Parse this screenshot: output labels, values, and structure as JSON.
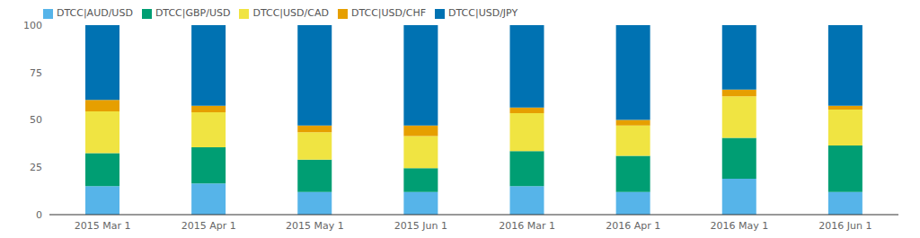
{
  "chart_data": {
    "type": "bar",
    "stacked": true,
    "grid": false,
    "legend": "top-left",
    "categories": [
      "2015 Mar 1",
      "2015 Apr 1",
      "2015 May 1",
      "2015 Jun 1",
      "2016 Mar 1",
      "2016 Apr 1",
      "2016 May 1",
      "2016 Jun 1"
    ],
    "series": [
      {
        "name": "DTCC|AUD/USD",
        "color": "#56b4e9",
        "values": [
          15,
          16.5,
          12,
          12,
          15,
          12,
          19,
          12
        ]
      },
      {
        "name": "DTCC|GBP/USD",
        "color": "#009e73",
        "values": [
          17.5,
          19,
          17,
          12.5,
          18.5,
          19,
          21.5,
          24.5
        ]
      },
      {
        "name": "DTCC|USD/CAD",
        "color": "#f0e442",
        "values": [
          22,
          18.5,
          14.5,
          17,
          20,
          16,
          22,
          19
        ]
      },
      {
        "name": "DTCC|USD/CHF",
        "color": "#e69f00",
        "values": [
          6,
          3.5,
          3.5,
          5.5,
          3,
          3,
          3.5,
          2
        ]
      },
      {
        "name": "DTCC|USD/JPY",
        "color": "#0072b2",
        "values": [
          39.5,
          42.5,
          53,
          53,
          43.5,
          50,
          34,
          42.5
        ]
      }
    ],
    "ylim": [
      0,
      100
    ],
    "yticks": [
      0,
      25,
      50,
      75,
      100
    ]
  }
}
